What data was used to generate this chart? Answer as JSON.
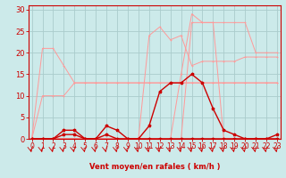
{
  "hours": [
    0,
    1,
    2,
    3,
    4,
    5,
    6,
    7,
    8,
    9,
    10,
    11,
    12,
    13,
    14,
    15,
    16,
    17,
    18,
    19,
    20,
    21,
    22,
    23
  ],
  "wind_avg": [
    0,
    0,
    0,
    1,
    1,
    0,
    0,
    1,
    0,
    0,
    0,
    0,
    0,
    0,
    0,
    0,
    0,
    0,
    0,
    0,
    0,
    0,
    0,
    0
  ],
  "wind_gust": [
    0,
    0,
    0,
    2,
    2,
    0,
    0,
    3,
    2,
    0,
    0,
    3,
    11,
    13,
    13,
    15,
    13,
    7,
    2,
    1,
    0,
    0,
    0,
    1
  ],
  "light1": [
    0,
    10,
    10,
    10,
    13,
    13,
    13,
    13,
    13,
    13,
    13,
    13,
    13,
    13,
    13,
    13,
    13,
    13,
    13,
    13,
    13,
    13,
    13,
    13
  ],
  "light2": [
    0,
    21,
    21,
    17,
    13,
    13,
    13,
    13,
    13,
    13,
    13,
    13,
    13,
    13,
    13,
    13,
    13,
    13,
    13,
    13,
    13,
    13,
    13,
    13
  ],
  "light3": [
    0,
    0,
    0,
    0,
    0,
    0,
    0,
    0,
    0,
    0,
    0,
    24,
    26,
    23,
    24,
    17,
    18,
    18,
    18,
    18,
    19,
    19,
    19,
    19
  ],
  "light4": [
    0,
    0,
    0,
    0,
    0,
    0,
    0,
    0,
    0,
    0,
    0,
    0,
    0,
    0,
    0,
    27,
    27,
    27,
    27,
    27,
    27,
    20,
    20,
    20
  ],
  "light5": [
    0,
    0,
    0,
    0,
    0,
    0,
    0,
    0,
    0,
    0,
    0,
    0,
    0,
    0,
    15,
    29,
    27,
    27,
    0,
    0,
    0,
    0,
    0,
    0
  ],
  "bg_color": "#cceaea",
  "grid_color": "#aacccc",
  "dark_color": "#cc0000",
  "light_color": "#ff9999",
  "xlabel": "Vent moyen/en rafales ( km/h )",
  "xlim": [
    0,
    23
  ],
  "ylim": [
    0,
    31
  ],
  "yticks": [
    0,
    5,
    10,
    15,
    20,
    25,
    30
  ]
}
